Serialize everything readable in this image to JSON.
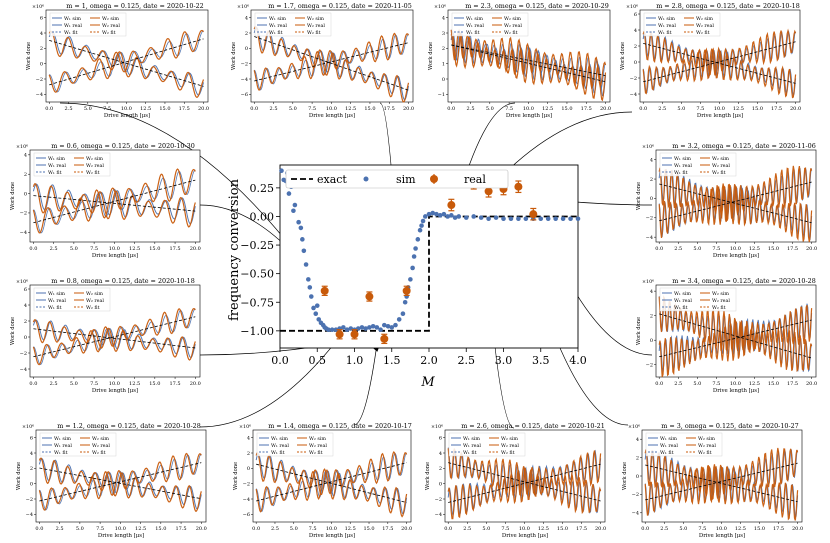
{
  "colors": {
    "sim": "#4c72b0",
    "real": "#c85a0a",
    "fit": "#000000"
  },
  "main_chart": {
    "type": "scatter",
    "xlabel": "M",
    "ylabel": "frequency conversion",
    "xlim": [
      0,
      4
    ],
    "ylim": [
      -1.15,
      0.45
    ],
    "xticks": [
      "0.0",
      "0.5",
      "1.0",
      "1.5",
      "2.0",
      "2.5",
      "3.0",
      "3.5",
      "4.0"
    ],
    "yticks": [
      "-1.00",
      "-0.75",
      "-0.50",
      "-0.25",
      "0.00",
      "0.25"
    ],
    "legend": {
      "placement": "top",
      "exact": "exact",
      "sim": "sim",
      "real": "real"
    },
    "exact": [
      [
        0,
        -1
      ],
      [
        2,
        -1
      ],
      [
        2,
        0
      ],
      [
        4,
        0
      ]
    ],
    "sim": [
      [
        0.02,
        0.4
      ],
      [
        0.05,
        0.32
      ],
      [
        0.08,
        0.31
      ],
      [
        0.1,
        0.38
      ],
      [
        0.12,
        0.2
      ],
      [
        0.15,
        0.26
      ],
      [
        0.18,
        0.05
      ],
      [
        0.2,
        0.1
      ],
      [
        0.22,
        0.29
      ],
      [
        0.25,
        -0.05
      ],
      [
        0.28,
        -0.1
      ],
      [
        0.3,
        -0.2
      ],
      [
        0.32,
        -0.3
      ],
      [
        0.35,
        -0.42
      ],
      [
        0.38,
        -0.55
      ],
      [
        0.4,
        -0.62
      ],
      [
        0.42,
        -0.7
      ],
      [
        0.45,
        -0.8
      ],
      [
        0.48,
        -0.85
      ],
      [
        0.5,
        -0.78
      ],
      [
        0.52,
        -0.9
      ],
      [
        0.55,
        -0.93
      ],
      [
        0.58,
        -0.95
      ],
      [
        0.6,
        -0.97
      ],
      [
        0.62,
        -0.98
      ],
      [
        0.65,
        -0.99
      ],
      [
        0.7,
        -0.99
      ],
      [
        0.75,
        -0.99
      ],
      [
        0.8,
        -0.98
      ],
      [
        0.85,
        -0.97
      ],
      [
        0.9,
        -0.99
      ],
      [
        0.95,
        -0.98
      ],
      [
        1.0,
        -0.99
      ],
      [
        1.05,
        -0.98
      ],
      [
        1.1,
        -0.97
      ],
      [
        1.15,
        -0.98
      ],
      [
        1.2,
        -0.97
      ],
      [
        1.25,
        -0.96
      ],
      [
        1.3,
        -0.97
      ],
      [
        1.35,
        -0.99
      ],
      [
        1.4,
        -0.95
      ],
      [
        1.45,
        -0.96
      ],
      [
        1.5,
        -0.97
      ],
      [
        1.55,
        -0.95
      ],
      [
        1.6,
        -0.9
      ],
      [
        1.65,
        -0.85
      ],
      [
        1.68,
        -0.75
      ],
      [
        1.7,
        -0.7
      ],
      [
        1.72,
        -0.62
      ],
      [
        1.75,
        -0.55
      ],
      [
        1.78,
        -0.45
      ],
      [
        1.8,
        -0.35
      ],
      [
        1.82,
        -0.28
      ],
      [
        1.85,
        -0.2
      ],
      [
        1.88,
        -0.12
      ],
      [
        1.9,
        -0.08
      ],
      [
        1.92,
        -0.04
      ],
      [
        1.95,
        0.0
      ],
      [
        2.0,
        0.02
      ],
      [
        2.05,
        0.03
      ],
      [
        2.1,
        0.02
      ],
      [
        2.15,
        0.01
      ],
      [
        2.2,
        0.02
      ],
      [
        2.25,
        0.0
      ],
      [
        2.3,
        0.01
      ],
      [
        2.35,
        -0.01
      ],
      [
        2.4,
        0.0
      ],
      [
        2.5,
        -0.01
      ],
      [
        2.6,
        0.0
      ],
      [
        2.7,
        -0.01
      ],
      [
        2.8,
        -0.02
      ],
      [
        2.9,
        -0.01
      ],
      [
        3.0,
        -0.02
      ],
      [
        3.1,
        -0.02
      ],
      [
        3.2,
        -0.02
      ],
      [
        3.3,
        -0.02
      ],
      [
        3.4,
        -0.02
      ],
      [
        3.5,
        -0.02
      ],
      [
        3.6,
        -0.02
      ],
      [
        3.7,
        -0.02
      ],
      [
        3.8,
        -0.02
      ],
      [
        3.9,
        -0.02
      ],
      [
        4.0,
        -0.02
      ]
    ],
    "real": [
      {
        "x": 0.6,
        "y": -0.65,
        "err": 0.04
      },
      {
        "x": 0.8,
        "y": -1.03,
        "err": 0.04
      },
      {
        "x": 1.0,
        "y": -1.03,
        "err": 0.04
      },
      {
        "x": 1.2,
        "y": -0.7,
        "err": 0.04
      },
      {
        "x": 1.4,
        "y": -1.07,
        "err": 0.04
      },
      {
        "x": 1.7,
        "y": -0.65,
        "err": 0.04
      },
      {
        "x": 2.3,
        "y": 0.1,
        "err": 0.05
      },
      {
        "x": 2.6,
        "y": 0.29,
        "err": 0.05
      },
      {
        "x": 2.8,
        "y": 0.22,
        "err": 0.05
      },
      {
        "x": 3.0,
        "y": 0.24,
        "err": 0.05
      },
      {
        "x": 3.2,
        "y": 0.26,
        "err": 0.05
      },
      {
        "x": 3.4,
        "y": 0.02,
        "err": 0.05
      }
    ]
  },
  "subplot_common": {
    "xlabel": "Drive length [μs]",
    "ylabel": "Work done",
    "scale": "×10⁶",
    "xticks": [
      "0.0",
      "2.5",
      "5.0",
      "7.5",
      "10.0",
      "12.5",
      "15.0",
      "17.5",
      "20.0"
    ],
    "legend": {
      "w1_sim": "W₁ sim",
      "w2_sim": "W₂ sim",
      "w1_real": "W₁ real",
      "w2_real": "W₂ real",
      "w1_fit": "W₁ fit",
      "w2_fit": "W₂ fit"
    }
  },
  "subplots": [
    {
      "title": "m = 1, omega = 0.125, date = 2020-10-22",
      "m": 1.0,
      "yticks": [
        "6",
        "4",
        "2",
        "0",
        "−2",
        "−4"
      ],
      "ymin": -5,
      "ymax": 7,
      "s1": -0.3,
      "s2": 0.3,
      "amp": 1.5,
      "n": 9
    },
    {
      "title": "m = 1.7, omega = 0.125, date = 2020-11-05",
      "m": 1.7,
      "yticks": [
        "4",
        "2",
        "0",
        "−2",
        "−4",
        "−6"
      ],
      "ymin": -7,
      "ymax": 5,
      "s1": -0.35,
      "s2": 0.25,
      "amp": 1.6,
      "n": 12
    },
    {
      "title": "m = 2.3, omega = 0.125, date = 2020-10-29",
      "m": 2.3,
      "yticks": [
        "4",
        "3",
        "2",
        "1",
        "0",
        "−1"
      ],
      "ymin": -1.5,
      "ymax": 4.5,
      "s1": -0.12,
      "s2": -0.1,
      "amp": 1.1,
      "n": 18
    },
    {
      "title": "m = 2.8, omega = 0.125, date = 2020-10-18",
      "m": 2.8,
      "yticks": [
        "6",
        "4",
        "2",
        "0",
        "−2",
        "−4"
      ],
      "ymin": -5,
      "ymax": 6.5,
      "s1": -0.25,
      "s2": 0.25,
      "amp": 1.8,
      "n": 22
    },
    {
      "title": "m = 0.6, omega = 0.125, date = 2020-10-30",
      "m": 0.6,
      "yticks": [
        "4",
        "2",
        "0",
        "−2",
        "−4"
      ],
      "ymin": -5,
      "ymax": 4.5,
      "s1": -0.08,
      "s2": 0.22,
      "amp": 1.5,
      "n": 10
    },
    {
      "title": "m = 3.2, omega = 0.125, date = 2020-11-06",
      "m": 3.2,
      "yticks": [
        "4",
        "2",
        "0",
        "−2",
        "−4"
      ],
      "ymin": -4.5,
      "ymax": 5,
      "s1": -0.2,
      "s2": 0.2,
      "amp": 2.0,
      "n": 26
    },
    {
      "title": "m = 0.8, omega = 0.125, date = 2020-10-18",
      "m": 0.8,
      "yticks": [
        "6",
        "4",
        "2",
        "0",
        "−2",
        "−4"
      ],
      "ymin": -5,
      "ymax": 6.5,
      "s1": -0.12,
      "s2": 0.25,
      "amp": 1.4,
      "n": 11
    },
    {
      "title": "m = 3.4, omega = 0.125, date = 2020-10-28",
      "m": 3.4,
      "yticks": [
        "4",
        "2",
        "0",
        "−2"
      ],
      "ymin": -3,
      "ymax": 4.5,
      "s1": 0.15,
      "s2": -0.18,
      "amp": 1.6,
      "n": 28
    },
    {
      "title": "m = 1.2, omega = 0.125, date = 2020-10-28",
      "m": 1.2,
      "yticks": [
        "6",
        "4",
        "2",
        "0",
        "−2",
        "−4"
      ],
      "ymin": -5,
      "ymax": 7,
      "s1": -0.2,
      "s2": 0.25,
      "amp": 1.6,
      "n": 12
    },
    {
      "title": "m = 1.4, omega = 0.125, date = 2020-10-17",
      "m": 1.4,
      "yticks": [
        "4",
        "2",
        "0",
        "−2",
        "−4",
        "−6"
      ],
      "ymin": -7,
      "ymax": 5,
      "s1": -0.25,
      "s2": 0.25,
      "amp": 1.8,
      "n": 13
    },
    {
      "title": "m = 2.6, omega = 0.125, date = 2020-10-21",
      "m": 2.6,
      "yticks": [
        "6",
        "4",
        "2",
        "0",
        "−2",
        "−4"
      ],
      "ymin": -5,
      "ymax": 7,
      "s1": 0.25,
      "s2": -0.25,
      "amp": 2.2,
      "n": 22
    },
    {
      "title": "m = 3, omega = 0.125, date = 2020-10-27",
      "m": 3.0,
      "yticks": [
        "4",
        "2",
        "0",
        "−2",
        "−4"
      ],
      "ymin": -5,
      "ymax": 5,
      "s1": -0.2,
      "s2": 0.2,
      "amp": 2.0,
      "n": 24
    }
  ]
}
